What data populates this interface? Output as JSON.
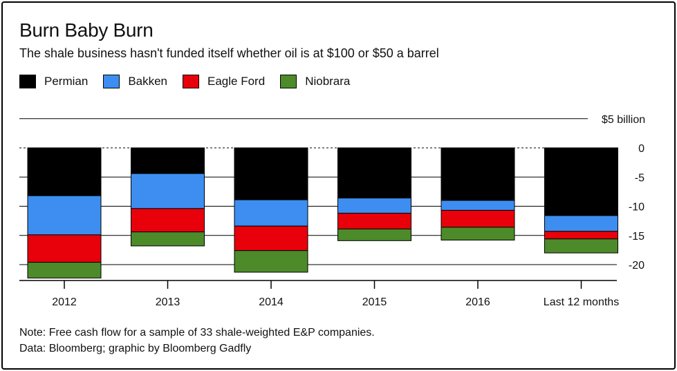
{
  "title": "Burn Baby Burn",
  "subtitle": "The shale business hasn't funded itself whether oil is at $100 or $50 a barrel",
  "legend": [
    {
      "label": "Permian",
      "color": "#000000"
    },
    {
      "label": "Bakken",
      "color": "#3d8ef0"
    },
    {
      "label": "Eagle Ford",
      "color": "#e8000a"
    },
    {
      "label": "Niobrara",
      "color": "#4d8a2a"
    }
  ],
  "notes": {
    "line1": "Note: Free cash flow for a sample of 33 shale-weighted E&P companies.",
    "line2": "Data: Bloomberg; graphic by Bloomberg Gadfly"
  },
  "chart_data": {
    "type": "bar",
    "stacked": true,
    "categories": [
      "2012",
      "2013",
      "2014",
      "2015",
      "2016",
      "Last 12 months"
    ],
    "series": [
      {
        "name": "Permian",
        "color": "#000000",
        "values": [
          -8.2,
          -4.4,
          -8.9,
          -8.6,
          -9.0,
          -11.6
        ]
      },
      {
        "name": "Bakken",
        "color": "#3d8ef0",
        "values": [
          -6.7,
          -6.0,
          -4.5,
          -2.6,
          -1.7,
          -2.7
        ]
      },
      {
        "name": "Eagle Ford",
        "color": "#e8000a",
        "values": [
          -4.7,
          -4.0,
          -4.2,
          -2.7,
          -2.9,
          -1.3
        ]
      },
      {
        "name": "Niobrara",
        "color": "#4d8a2a",
        "values": [
          -2.7,
          -2.4,
          -3.7,
          -2.0,
          -2.2,
          -2.4
        ]
      }
    ],
    "yticks": [
      "0",
      "-5",
      "-10",
      "-15",
      "-20"
    ],
    "ytick_values": [
      0,
      -5,
      -10,
      -15,
      -20
    ],
    "top_gridline_label": "$5 billion",
    "top_gridline_value": 5,
    "ylim": [
      -22.5,
      5
    ]
  }
}
